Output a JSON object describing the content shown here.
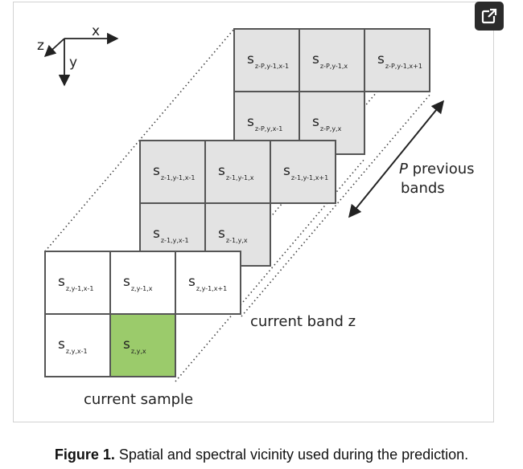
{
  "caption": {
    "prefix": "Figure 1.",
    "text": " Spatial and spectral vicinity used during the prediction."
  },
  "axes": {
    "x": "x",
    "y": "y",
    "z": "z"
  },
  "bands": {
    "previous": {
      "fill": "#e3e3e3",
      "cells": [
        {
          "sub": "z-P,y-1,x-1"
        },
        {
          "sub": "z-P,y-1,x"
        },
        {
          "sub": "z-P,y-1,x+1"
        },
        {
          "sub": "z-P,y,x-1"
        },
        {
          "sub": "z-P,y,x"
        }
      ]
    },
    "minus_one": {
      "fill": "#e3e3e3",
      "cells": [
        {
          "sub": "z-1,y-1,x-1"
        },
        {
          "sub": "z-1,y-1,x"
        },
        {
          "sub": "z-1,y-1,x+1"
        },
        {
          "sub": "z-1,y,x-1"
        },
        {
          "sub": "z-1,y,x"
        }
      ]
    },
    "current": {
      "fill": "#ffffff",
      "highlight_fill": "#9bcb6b",
      "cells": [
        {
          "sub": "z,y-1,x-1"
        },
        {
          "sub": "z,y-1,x"
        },
        {
          "sub": "z,y-1,x+1"
        },
        {
          "sub": "z,y,x-1"
        },
        {
          "sub": "z,y,x",
          "highlight": true
        }
      ]
    }
  },
  "cell_symbol": "s",
  "labels": {
    "p_previous_italic": "P",
    "p_previous_rest": " previous",
    "p_previous_line2": "bands",
    "current_band": "current band z",
    "current_sample": "current sample"
  },
  "colors": {
    "grid_line": "#555555",
    "dotted_line": "#444444",
    "highlight": "#9bcb6b",
    "gray_cell": "#e3e3e3"
  },
  "icons": {
    "open_external": "open-external-icon"
  }
}
